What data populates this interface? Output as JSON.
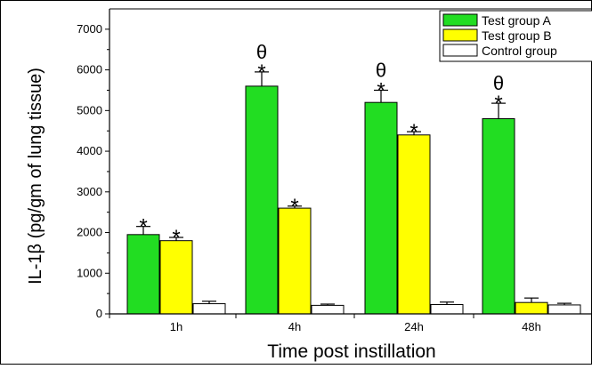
{
  "chart_data": {
    "type": "bar",
    "title": "",
    "xlabel": "Time post instillation",
    "ylabel": "IL-1β (pg/gm of lung tissue)",
    "ylim": [
      0,
      7500
    ],
    "yticks": [
      0,
      1000,
      2000,
      3000,
      4000,
      5000,
      6000,
      7000
    ],
    "categories": [
      "1h",
      "4h",
      "24h",
      "48h"
    ],
    "grid": false,
    "legend_position": "top-right",
    "series": [
      {
        "name": "Test group A",
        "color": "#22dd22",
        "values": [
          1950,
          5600,
          5200,
          4800
        ],
        "errors": [
          200,
          350,
          300,
          380
        ],
        "annotations": [
          [
            "*"
          ],
          [
            "θ",
            "*"
          ],
          [
            "θ",
            "*"
          ],
          [
            "θ",
            "*"
          ]
        ]
      },
      {
        "name": "Test group B",
        "color": "#ffff00",
        "values": [
          1800,
          2600,
          4400,
          280
        ],
        "errors": [
          80,
          50,
          80,
          110
        ],
        "annotations": [
          [
            "*"
          ],
          [
            "*"
          ],
          [
            "*"
          ],
          []
        ]
      },
      {
        "name": "Control group",
        "color": "#ffffff",
        "values": [
          250,
          210,
          230,
          220
        ],
        "errors": [
          60,
          30,
          60,
          40
        ],
        "annotations": [
          [],
          [],
          [],
          []
        ]
      }
    ]
  }
}
